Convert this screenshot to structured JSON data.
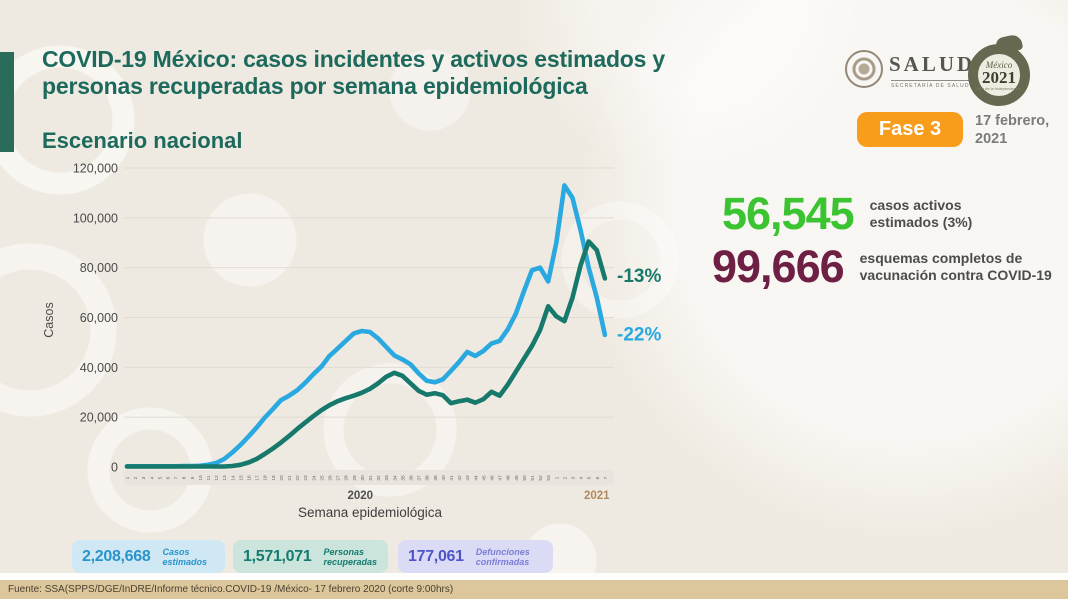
{
  "header": {
    "title_line1": "COVID-19 México: casos incidentes y activos estimados y",
    "title_line2": "personas recuperadas por semana epidemiológica",
    "subtitle": "Escenario nacional",
    "salud": {
      "wordmark": "SALUD",
      "sub": "SECRETARÍA DE SALUD"
    },
    "mexico": {
      "script": "México",
      "year": "2021",
      "sub": "Año de la Independencia"
    },
    "phase_badge": "Fase 3",
    "date_line1": "17 febrero,",
    "date_line2": "2021"
  },
  "right_stats": [
    {
      "value": "56,545",
      "label_line1": "casos activos",
      "label_line2": "estimados (3%)",
      "color": "#3cc331"
    },
    {
      "value": "99,666",
      "label_line1": "esquemas completos de",
      "label_line2": "vacunación contra COVID-19",
      "color": "#6e2044"
    }
  ],
  "bottom_stats": [
    {
      "value": "2,208,668",
      "label_line1": "Casos",
      "label_line2": "estimados",
      "color": "#2994cb"
    },
    {
      "value": "1,571,071",
      "label_line1": "Personas",
      "label_line2": "recuperadas",
      "color": "#157a6e"
    },
    {
      "value": "177,061",
      "label_line1": "Defunciones",
      "label_line2": "confirmadas",
      "color": "#4d55c8"
    }
  ],
  "footer": {
    "source": "Fuente: SSA(SPPS/DGE/InDRE/Informe técnico.COVID-19 /México- 17 febrero 2020 (corte 9:00hrs)"
  },
  "chart_data": {
    "type": "line",
    "title": "Escenario nacional",
    "xlabel": "Semana epidemiológica",
    "ylabel": "Casos",
    "ylim": [
      0,
      120000
    ],
    "grid": true,
    "legend": "none",
    "y_ticks": [
      "0",
      "20,000",
      "40,000",
      "60,000",
      "80,000",
      "100,000",
      "120,000"
    ],
    "categories": [
      "1",
      "2",
      "3",
      "4",
      "5",
      "6",
      "7",
      "8",
      "9",
      "10",
      "11",
      "12",
      "13",
      "14",
      "15",
      "16",
      "17",
      "18",
      "19",
      "20",
      "21",
      "22",
      "23",
      "24",
      "25",
      "26",
      "27",
      "28",
      "29",
      "30",
      "31",
      "32",
      "33",
      "34",
      "35",
      "36",
      "37",
      "38",
      "39",
      "40",
      "41",
      "42",
      "43",
      "44",
      "45",
      "46",
      "47",
      "48",
      "49",
      "50",
      "51",
      "52",
      "53",
      "1",
      "2",
      "3",
      "4",
      "5",
      "6",
      "7"
    ],
    "year_labels": [
      {
        "text": "2020",
        "week_index": 28.8,
        "color": "#515151"
      },
      {
        "text": "2021",
        "week_index": 58,
        "color": "#b08a5e"
      }
    ],
    "series": [
      {
        "id": "casos-estimados",
        "name": "Casos incidentes estimados",
        "color": "#29a9e0",
        "values": [
          300,
          300,
          300,
          300,
          300,
          300,
          300,
          350,
          400,
          500,
          900,
          1600,
          3200,
          5800,
          8800,
          12200,
          15800,
          19800,
          23200,
          26800,
          28600,
          30800,
          33800,
          37200,
          40300,
          44600,
          47500,
          50600,
          53600,
          54600,
          54200,
          51600,
          48200,
          44800,
          43200,
          41200,
          37600,
          34600,
          34000,
          35200,
          38600,
          42200,
          46200,
          44600,
          46600,
          49600,
          50600,
          55200,
          61500,
          70500,
          79000,
          80000,
          74500,
          90000,
          113000,
          108000,
          95000,
          80000,
          68000,
          53000
        ]
      },
      {
        "id": "personas-recuperadas",
        "name": "Personas recuperadas",
        "color": "#17796b",
        "values": [
          200,
          200,
          200,
          200,
          200,
          200,
          200,
          200,
          200,
          200,
          200,
          200,
          200,
          400,
          900,
          1800,
          3200,
          5200,
          7400,
          9800,
          12400,
          15200,
          17800,
          20400,
          22800,
          24800,
          26400,
          27600,
          28600,
          29800,
          31400,
          33600,
          36200,
          37800,
          36600,
          33600,
          30600,
          29000,
          29600,
          28800,
          25600,
          26400,
          27000,
          25800,
          27200,
          30200,
          28600,
          33000,
          38200,
          43400,
          48600,
          55000,
          64500,
          60500,
          58500,
          68000,
          81000,
          90500,
          87000,
          75700
        ]
      }
    ],
    "annotations": [
      {
        "text": "-13%",
        "value": 77000,
        "color": "#17796b"
      },
      {
        "text": "-22%",
        "value": 53500,
        "color": "#29a9e0"
      }
    ]
  }
}
